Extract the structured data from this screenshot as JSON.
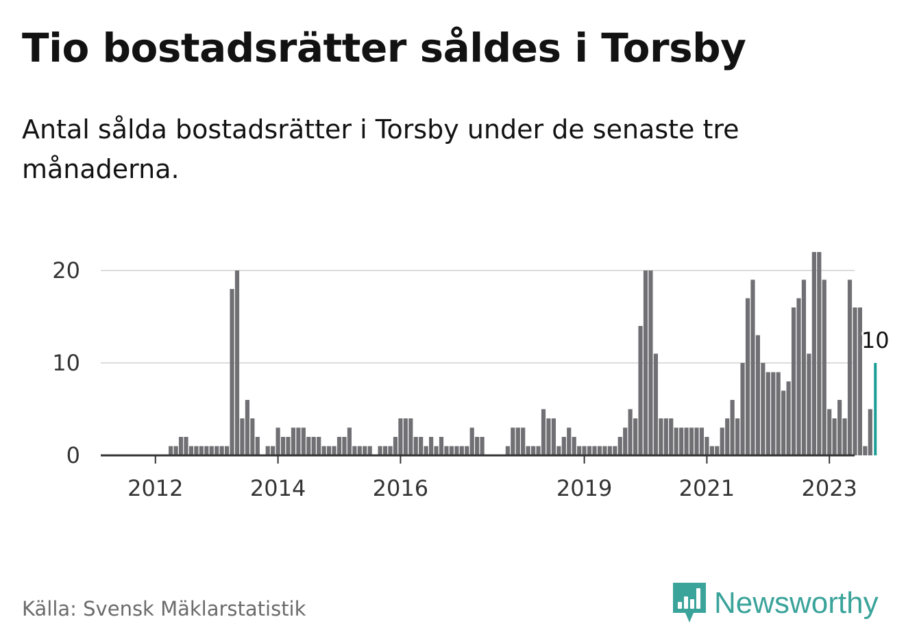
{
  "title": "Tio bostadsrätter såldes i Torsby",
  "subtitle": "Antal sålda bostadsrätter i Torsby under de senaste tre månaderna.",
  "source": "Källa: Svensk Mäklarstatistik",
  "brand": {
    "name": "Newsworthy",
    "logo_icon": "bar-chart-speech-bubble-icon",
    "color": "#3aa39a"
  },
  "colors": {
    "bar": "#707074",
    "highlight": "#1a9e96",
    "grid": "#dcdcdc",
    "axis": "#333333"
  },
  "chart_data": {
    "type": "bar",
    "x_start": "2011-09",
    "x_step": "month",
    "y_ticks": [
      0,
      10,
      20
    ],
    "ylim": [
      0,
      22
    ],
    "x_tick_labels": [
      {
        "label": "2012",
        "date": "2012-01"
      },
      {
        "label": "2014",
        "date": "2014-01"
      },
      {
        "label": "2016",
        "date": "2016-01"
      },
      {
        "label": "2019",
        "date": "2019-01"
      },
      {
        "label": "2021",
        "date": "2021-01"
      },
      {
        "label": "2023",
        "date": "2023-01"
      }
    ],
    "highlight_label": "10",
    "values": [
      0,
      0,
      0,
      0,
      0,
      0,
      0,
      1,
      1,
      2,
      2,
      1,
      1,
      1,
      1,
      1,
      1,
      1,
      1,
      18,
      20,
      4,
      6,
      4,
      2,
      0,
      1,
      1,
      3,
      2,
      2,
      3,
      3,
      3,
      2,
      2,
      2,
      1,
      1,
      1,
      2,
      2,
      3,
      1,
      1,
      1,
      1,
      0,
      1,
      1,
      1,
      2,
      4,
      4,
      4,
      2,
      2,
      1,
      2,
      1,
      2,
      1,
      1,
      1,
      1,
      1,
      3,
      2,
      2,
      0,
      0,
      0,
      0,
      1,
      3,
      3,
      3,
      1,
      1,
      1,
      5,
      4,
      4,
      1,
      2,
      3,
      2,
      1,
      1,
      1,
      1,
      1,
      1,
      1,
      1,
      2,
      3,
      5,
      4,
      14,
      20,
      20,
      11,
      4,
      4,
      4,
      3,
      3,
      3,
      3,
      3,
      3,
      2,
      1,
      1,
      3,
      4,
      6,
      4,
      10,
      17,
      19,
      13,
      10,
      9,
      9,
      9,
      7,
      8,
      16,
      17,
      19,
      11,
      22,
      22,
      19,
      5,
      4,
      6,
      4,
      19,
      16,
      16,
      1,
      5,
      10
    ]
  }
}
